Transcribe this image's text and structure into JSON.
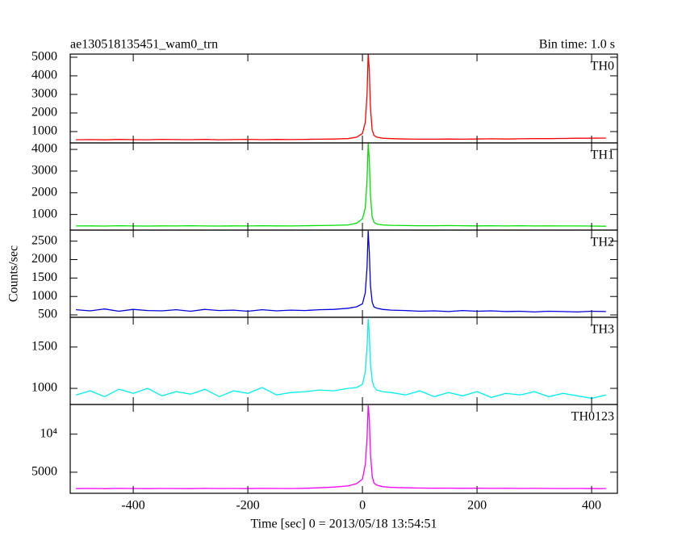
{
  "title": "ae130518135451_wam0_trn",
  "subtitle": "Bin time: 1.0 s",
  "ylabel": "Counts/sec",
  "xlabel": "Time [sec] 0 = 2013/05/18 13:54:51",
  "chart_data": [
    {
      "type": "line",
      "xlim": [
        -510,
        445
      ],
      "xticks": [
        -400,
        -200,
        0,
        200,
        400
      ],
      "ylim": [
        390,
        5170
      ],
      "yticks": [
        1000,
        2000,
        3000,
        4000,
        5000
      ],
      "x": [
        -500,
        -475,
        -450,
        -425,
        -400,
        -375,
        -350,
        -325,
        -300,
        -275,
        -250,
        -225,
        -200,
        -175,
        -150,
        -125,
        -100,
        -75,
        -50,
        -25,
        -10,
        0,
        5,
        8,
        10,
        12,
        14,
        17,
        20,
        25,
        35,
        50,
        75,
        100,
        125,
        150,
        175,
        200,
        225,
        250,
        275,
        300,
        325,
        350,
        375,
        400,
        425
      ],
      "series": [
        {
          "name": "TH0",
          "color": "#ff0000",
          "values": [
            560,
            570,
            555,
            575,
            565,
            560,
            580,
            570,
            565,
            575,
            560,
            570,
            580,
            565,
            575,
            570,
            580,
            590,
            600,
            620,
            700,
            900,
            1500,
            3000,
            5200,
            4300,
            2300,
            1100,
            800,
            700,
            640,
            620,
            600,
            590,
            590,
            600,
            590,
            600,
            610,
            600,
            610,
            620,
            620,
            630,
            640,
            640,
            650
          ]
        }
      ]
    },
    {
      "type": "line",
      "xlim": [
        -510,
        445
      ],
      "xticks": [
        -400,
        -200,
        0,
        200,
        400
      ],
      "ylim": [
        280,
        4300
      ],
      "yticks": [
        1000,
        2000,
        3000,
        4000
      ],
      "x": [
        -500,
        -475,
        -450,
        -425,
        -400,
        -375,
        -350,
        -325,
        -300,
        -275,
        -250,
        -225,
        -200,
        -175,
        -150,
        -125,
        -100,
        -75,
        -50,
        -25,
        -10,
        0,
        5,
        8,
        10,
        12,
        14,
        17,
        20,
        25,
        35,
        50,
        75,
        100,
        125,
        150,
        175,
        200,
        225,
        250,
        275,
        300,
        325,
        350,
        375,
        400,
        425
      ],
      "series": [
        {
          "name": "TH1",
          "color": "#00e000",
          "values": [
            470,
            475,
            465,
            480,
            470,
            465,
            475,
            470,
            480,
            470,
            465,
            475,
            470,
            480,
            475,
            470,
            480,
            490,
            500,
            520,
            600,
            800,
            1300,
            2600,
            4300,
            3500,
            1900,
            900,
            650,
            560,
            520,
            500,
            490,
            480,
            480,
            490,
            480,
            475,
            480,
            470,
            480,
            470,
            475,
            470,
            470,
            465,
            460
          ]
        }
      ]
    },
    {
      "type": "line",
      "xlim": [
        -510,
        445
      ],
      "xticks": [
        -400,
        -200,
        0,
        200,
        400
      ],
      "ylim": [
        435,
        2800
      ],
      "yticks": [
        500,
        1000,
        1500,
        2000,
        2500
      ],
      "x": [
        -500,
        -475,
        -450,
        -425,
        -400,
        -375,
        -350,
        -325,
        -300,
        -275,
        -250,
        -225,
        -200,
        -175,
        -150,
        -125,
        -100,
        -75,
        -50,
        -25,
        -10,
        0,
        5,
        8,
        10,
        12,
        14,
        17,
        20,
        25,
        35,
        50,
        75,
        100,
        125,
        150,
        175,
        200,
        225,
        250,
        275,
        300,
        325,
        350,
        375,
        400,
        425
      ],
      "series": [
        {
          "name": "TH2",
          "color": "#0000e0",
          "values": [
            640,
            610,
            660,
            600,
            650,
            620,
            610,
            640,
            600,
            650,
            620,
            630,
            600,
            640,
            610,
            630,
            620,
            640,
            650,
            680,
            720,
            800,
            1100,
            1800,
            2780,
            2200,
            1300,
            850,
            720,
            680,
            650,
            630,
            620,
            600,
            610,
            590,
            620,
            600,
            610,
            590,
            600,
            580,
            600,
            590,
            580,
            600,
            590
          ]
        }
      ]
    },
    {
      "type": "line",
      "xlim": [
        -510,
        445
      ],
      "xticks": [
        -400,
        -200,
        0,
        200,
        400
      ],
      "ylim": [
        805,
        1860
      ],
      "yticks": [
        1000,
        1500
      ],
      "x": [
        -500,
        -475,
        -450,
        -425,
        -400,
        -375,
        -350,
        -325,
        -300,
        -275,
        -250,
        -225,
        -200,
        -175,
        -150,
        -125,
        -100,
        -75,
        -50,
        -25,
        -10,
        0,
        5,
        8,
        10,
        12,
        14,
        17,
        20,
        25,
        35,
        50,
        75,
        100,
        125,
        150,
        175,
        200,
        225,
        250,
        275,
        300,
        325,
        350,
        375,
        400,
        425
      ],
      "series": [
        {
          "name": "TH3",
          "color": "#00f0f0",
          "values": [
            920,
            970,
            900,
            990,
            940,
            1000,
            910,
            960,
            930,
            990,
            900,
            970,
            940,
            1010,
            920,
            950,
            960,
            980,
            970,
            1000,
            1010,
            1050,
            1200,
            1500,
            1840,
            1650,
            1300,
            1100,
            1020,
            980,
            960,
            950,
            920,
            970,
            900,
            950,
            910,
            960,
            890,
            940,
            920,
            960,
            900,
            940,
            910,
            880,
            920
          ]
        }
      ]
    },
    {
      "type": "line",
      "xlim": [
        -510,
        445
      ],
      "xticks": [
        -400,
        -200,
        0,
        200,
        400
      ],
      "ylim": [
        2230,
        13900
      ],
      "yticks": [
        5000,
        {
          "value": 10000,
          "label": "10⁴"
        }
      ],
      "x": [
        -500,
        -475,
        -450,
        -425,
        -400,
        -375,
        -350,
        -325,
        -300,
        -275,
        -250,
        -225,
        -200,
        -175,
        -150,
        -125,
        -100,
        -75,
        -50,
        -25,
        -10,
        0,
        5,
        8,
        10,
        12,
        14,
        17,
        20,
        25,
        35,
        50,
        75,
        100,
        125,
        150,
        175,
        200,
        225,
        250,
        275,
        300,
        325,
        350,
        375,
        400,
        425
      ],
      "series": [
        {
          "name": "TH0123",
          "color": "#ff00ff",
          "values": [
            2850,
            2870,
            2840,
            2880,
            2860,
            2850,
            2870,
            2860,
            2850,
            2880,
            2860,
            2870,
            2850,
            2880,
            2870,
            2860,
            2890,
            2950,
            3050,
            3200,
            3500,
            4100,
            6000,
            9500,
            13800,
            12000,
            7500,
            4500,
            3600,
            3300,
            3100,
            3000,
            2950,
            2920,
            2900,
            2910,
            2890,
            2900,
            2880,
            2890,
            2870,
            2880,
            2870,
            2860,
            2870,
            2850,
            2860
          ]
        }
      ]
    }
  ]
}
